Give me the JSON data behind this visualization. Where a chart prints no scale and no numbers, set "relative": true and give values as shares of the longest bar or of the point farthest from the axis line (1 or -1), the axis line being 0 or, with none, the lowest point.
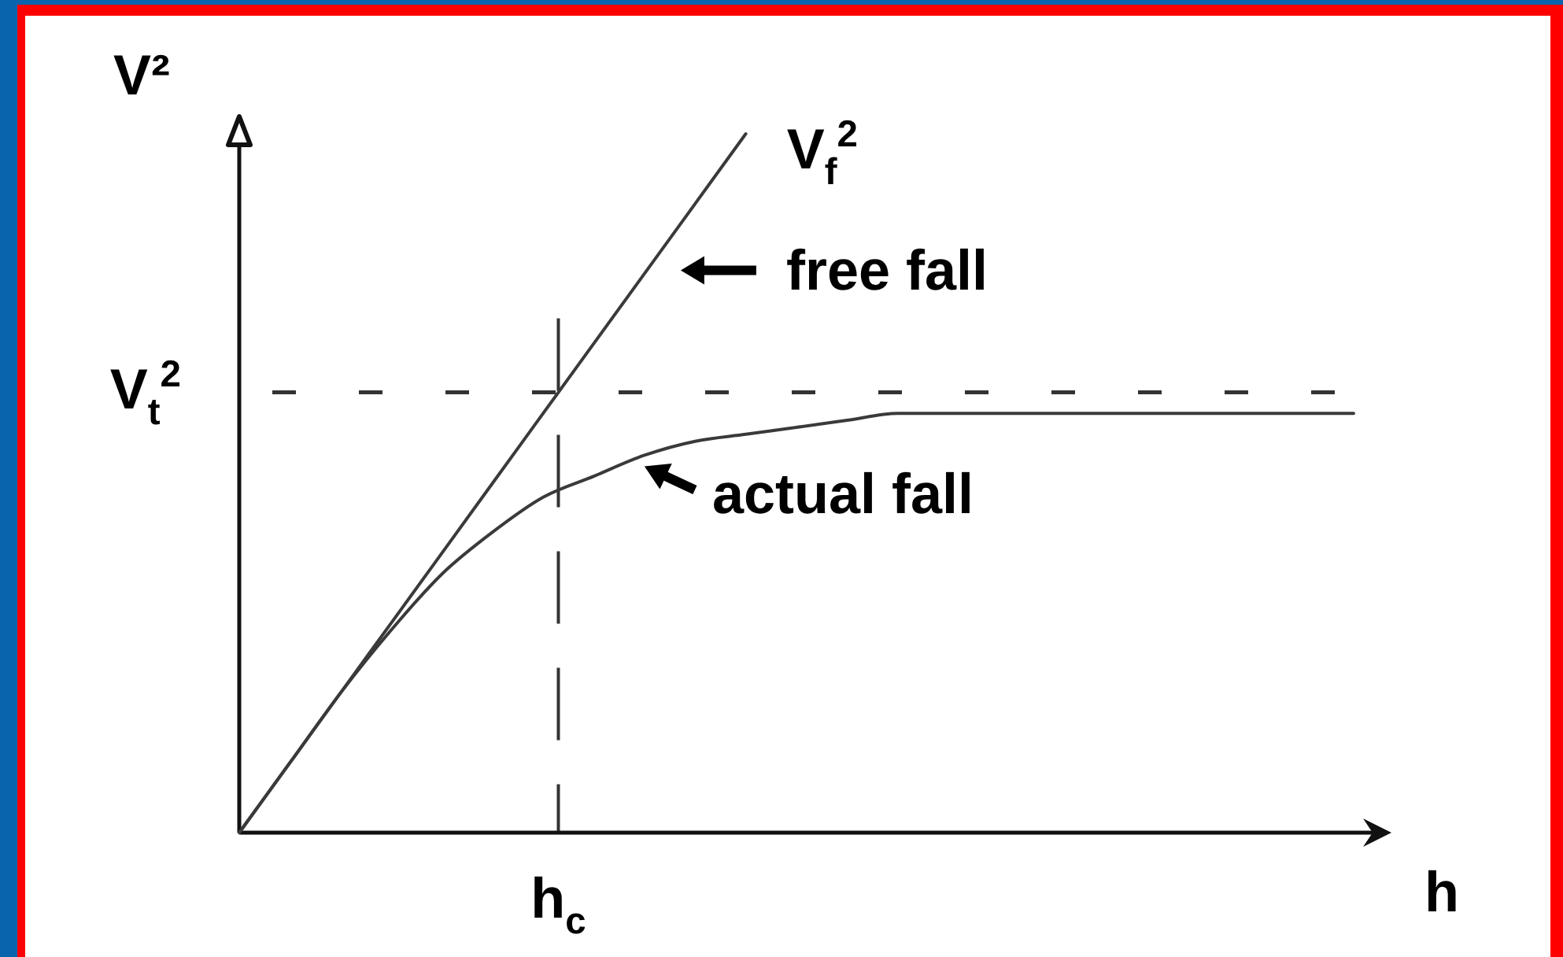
{
  "chart_data": {
    "type": "line",
    "relative": true,
    "xlabel": "h",
    "ylabel": "V²",
    "categories": [
      null,
      null,
      null,
      null,
      null,
      null,
      null,
      null,
      null,
      null,
      null,
      null,
      null,
      null,
      null,
      null,
      null,
      null,
      null,
      null,
      null,
      null,
      null
    ],
    "series": [
      {
        "name": "free fall",
        "color": "#3a3a3a",
        "values": [
          0,
          0.1,
          0.2,
          0.3,
          0.4,
          0.5,
          0.6,
          0.7,
          0.8,
          0.9,
          1,
          null,
          null,
          null,
          null,
          null,
          null,
          null,
          null,
          null,
          null,
          null,
          null
        ]
      },
      {
        "name": "actual fall",
        "color": "#3a3a3a",
        "values": [
          0,
          0.1,
          0.2,
          0.29,
          0.37,
          0.43,
          0.48,
          0.51,
          0.54,
          0.56,
          0.57,
          0.58,
          0.59,
          0.6,
          0.6,
          0.6,
          0.6,
          0.6,
          0.6,
          0.6,
          0.6,
          0.6,
          0.6
        ]
      }
    ],
    "ref_lines": [
      {
        "axis": "y",
        "value": 0.63,
        "label": "V$_{t}$$^{2}$",
        "line_style": "dashed",
        "color": "#333333"
      }
    ],
    "annotations": [
      "V$_{f}$$^{2}$",
      "h$_{c}$"
    ]
  }
}
